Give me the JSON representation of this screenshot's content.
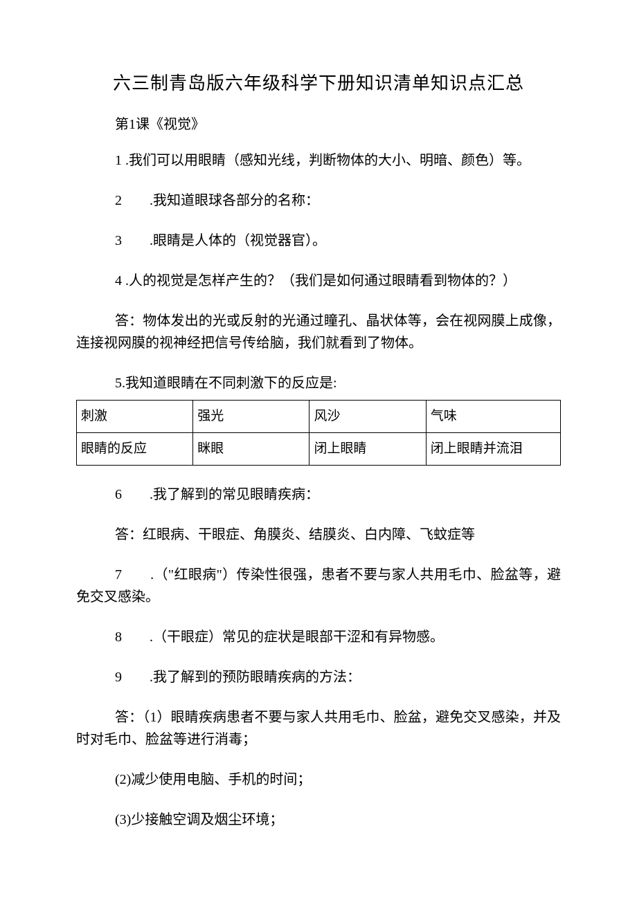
{
  "title": "六三制青岛版六年级科学下册知识清单知识点汇总",
  "subtitle": "第1课《视觉》",
  "p1": "1 .我们可以用眼睛（感知光线，判断物体的大小、明暗、颜色）等。",
  "p2": "2　　.我知道眼球各部分的名称：",
  "p3": "3　　.眼睛是人体的（视觉器官）。",
  "p4": "4 .人的视觉是怎样产生的？（我们是如何通过眼睛看到物体的？）",
  "p4a": "答：物体发出的光或反射的光通过瞳孔、晶状体等，会在视网膜上成像，连接视网膜的视神经把信号传给脑，我们就看到了物体。",
  "p5": "5.我知道眼睛在不同刺激下的反应是:",
  "table": {
    "columns": [
      "刺激",
      "强光",
      "风沙",
      "气味"
    ],
    "rows": [
      [
        "眼睛的反应",
        "眯眼",
        "闭上眼睛",
        "闭上眼睛并流泪"
      ]
    ],
    "border_color": "#000000",
    "font_size": 19
  },
  "p6": "6　　.我了解到的常见眼睛疾病：",
  "p6a": "答：红眼病、干眼症、角膜炎、结膜炎、白内障、飞蚊症等",
  "p7": "7　　.（\"红眼病\"）传染性很强，患者不要与家人共用毛巾、脸盆等，避免交叉感染。",
  "p8": "8　　.（干眼症）常见的症状是眼部干涩和有异物感。",
  "p9": "9　　.我了解到的预防眼睛疾病的方法：",
  "p9a": "答：（1）眼睛疾病患者不要与家人共用毛巾、脸盆，避免交叉感染，并及时对毛巾、脸盆等进行消毒；",
  "p9b": "(2)减少使用电脑、手机的时间；",
  "p9c": "(3)少接触空调及烟尘环境；",
  "colors": {
    "text": "#000000",
    "background": "#ffffff",
    "table_border": "#000000"
  },
  "typography": {
    "title_fontsize": 26,
    "body_fontsize": 20,
    "table_fontsize": 19,
    "font_family": "SimSun"
  }
}
